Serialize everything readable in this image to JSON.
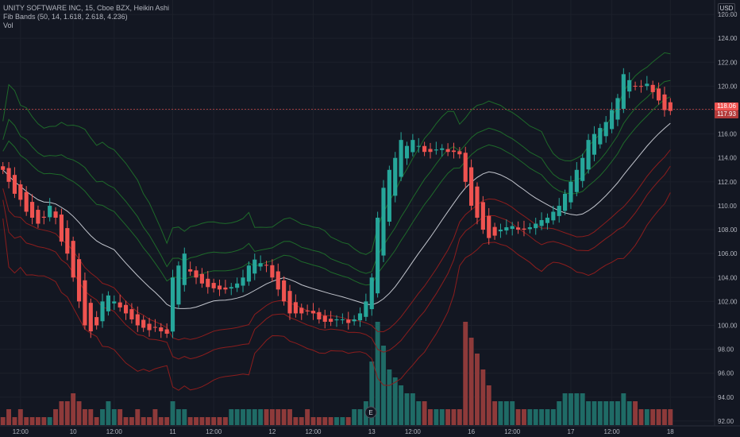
{
  "legend": {
    "title": "UNITY SOFTWARE INC, 15, Cboe BZX, Heikin Ashi",
    "indicator": "Fib Bands (50, 14, 1.618, 2.618, 4.236)",
    "volume": "Vol"
  },
  "currency": "USD",
  "price_labels": {
    "last": "118.06",
    "close": "117.93"
  },
  "event_marker": "E",
  "colors": {
    "up": "#26a69a",
    "down": "#ef5350",
    "basis": "#c3c6ce",
    "green_band": "#1e6a2a",
    "red_band": "#8c1d1d",
    "background": "#131722"
  },
  "chart_data": {
    "type": "candlestick",
    "title": "UNITY SOFTWARE INC, 15, Cboe BZX, Heikin Ashi",
    "timeframe": "15",
    "exchange": "Cboe BZX",
    "style": "Heikin Ashi",
    "currency": "USD",
    "ylim": [
      90.8,
      127.2
    ],
    "y_ticks": [
      92,
      94,
      96,
      98,
      100,
      102,
      104,
      106,
      108,
      110,
      112,
      114,
      116,
      118,
      120,
      122,
      124,
      126
    ],
    "x_ticks": [
      {
        "label": "12:00",
        "bar": 3
      },
      {
        "label": "10",
        "bar": 12
      },
      {
        "label": "12:00",
        "bar": 19
      },
      {
        "label": "11",
        "bar": 29
      },
      {
        "label": "12:00",
        "bar": 36
      },
      {
        "label": "12",
        "bar": 46
      },
      {
        "label": "12:00",
        "bar": 53
      },
      {
        "label": "13",
        "bar": 63
      },
      {
        "label": "12:00",
        "bar": 70
      },
      {
        "label": "16",
        "bar": 80
      },
      {
        "label": "12:00",
        "bar": 87
      },
      {
        "label": "17",
        "bar": 97
      },
      {
        "label": "12:00",
        "bar": 104
      },
      {
        "label": "18",
        "bar": 114
      }
    ],
    "close": [
      113,
      112,
      111,
      110.5,
      109.5,
      109,
      108.5,
      109,
      110,
      109,
      107,
      106,
      104,
      102,
      100,
      99.5,
      100,
      102,
      102.5,
      102,
      101.5,
      101,
      100.5,
      100,
      99.8,
      99.6,
      99.8,
      99.5,
      99.3,
      104,
      105,
      106,
      104.5,
      104,
      103.5,
      103.2,
      103.1,
      103,
      103,
      103.2,
      103.5,
      104,
      105,
      105.5,
      105.2,
      105,
      104,
      103,
      102,
      101,
      101,
      101,
      101.2,
      101,
      100.5,
      100.3,
      100.3,
      100.5,
      100.5,
      100.2,
      100.5,
      101,
      102,
      104,
      109,
      111.5,
      113,
      114,
      115.5,
      115,
      115.5,
      115,
      114.5,
      114.5,
      114.7,
      114.8,
      114.5,
      114.5,
      114.3,
      112,
      110,
      109,
      108,
      107.3,
      107.5,
      108,
      108.2,
      108.3,
      108,
      108,
      108.2,
      108.5,
      108.8,
      109,
      109.5,
      110,
      111,
      112,
      113,
      114,
      115.5,
      116,
      116.5,
      117,
      118,
      119,
      121,
      120.5,
      120,
      120,
      120.2,
      119.5,
      118.8,
      118,
      117.93
    ],
    "volume_bars": [
      1,
      2,
      1,
      2,
      1,
      1,
      1,
      1,
      1,
      2,
      3,
      3,
      4,
      3,
      2,
      2,
      1,
      2,
      3,
      2,
      2,
      1,
      1,
      2,
      1,
      1,
      2,
      1,
      1,
      3,
      2,
      2,
      1,
      1,
      1,
      1,
      1,
      1,
      1,
      2,
      2,
      2,
      2,
      2,
      2,
      2,
      2,
      2,
      2,
      2,
      1,
      1,
      2,
      1,
      1,
      1,
      1,
      1,
      1,
      1,
      2,
      2,
      3,
      8,
      13,
      10,
      7,
      6,
      5,
      4,
      4,
      3,
      3,
      2,
      2,
      2,
      2,
      2,
      2,
      13,
      11,
      9,
      7,
      5,
      3,
      3,
      3,
      3,
      2,
      2,
      2,
      2,
      2,
      2,
      2,
      3,
      4,
      4,
      4,
      4,
      3,
      3,
      3,
      3,
      3,
      3,
      4,
      3,
      3,
      2,
      2,
      2,
      2,
      2,
      2
    ],
    "series": [
      {
        "name": "Basis",
        "color": "#c3c6ce"
      },
      {
        "name": "Upper 1.618",
        "color": "#1e6a2a"
      },
      {
        "name": "Upper 2.618",
        "color": "#1e6a2a"
      },
      {
        "name": "Upper 4.236",
        "color": "#1e6a2a"
      },
      {
        "name": "Lower 1.618",
        "color": "#8c1d1d"
      },
      {
        "name": "Lower 2.618",
        "color": "#8c1d1d"
      },
      {
        "name": "Lower 4.236",
        "color": "#8c1d1d"
      }
    ],
    "last_price": 118.06,
    "close_price": 117.93
  }
}
